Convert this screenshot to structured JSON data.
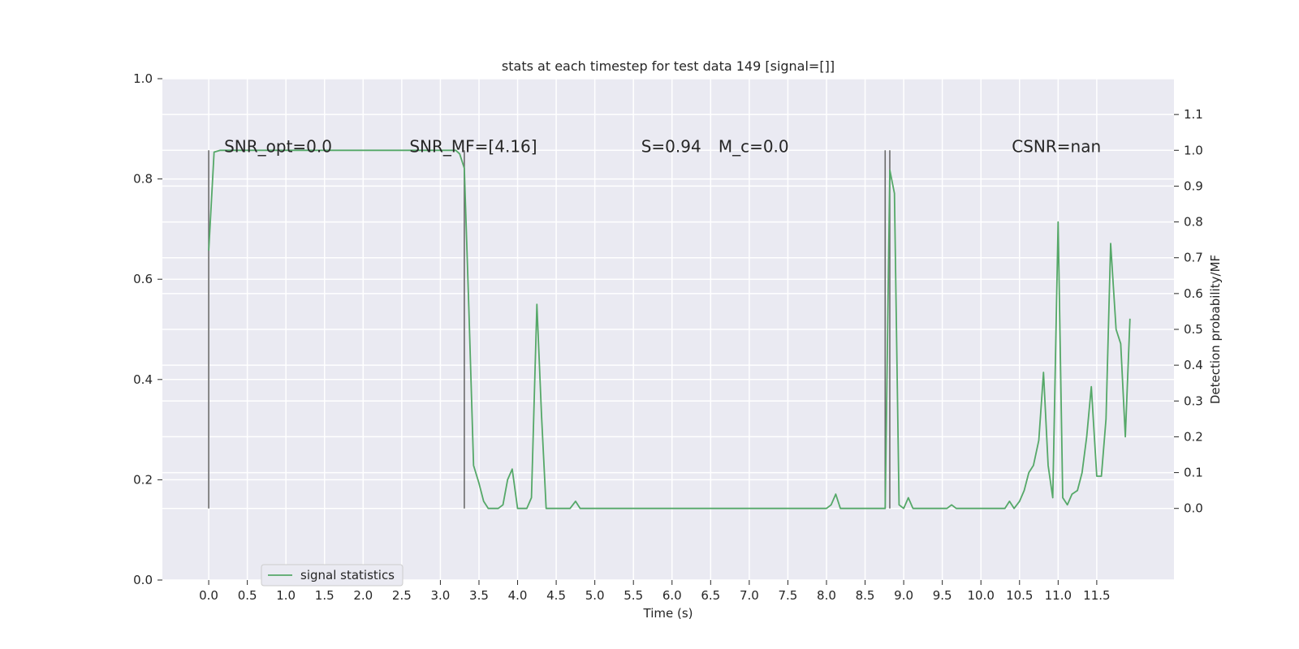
{
  "chart_data": {
    "type": "line",
    "title": "stats at each timestep for test data 149 [signal=[]]",
    "xlabel": "Time (s)",
    "ylabel": "",
    "y2label": "Detection probability/MF",
    "xlim": [
      -0.6,
      12.5
    ],
    "ylim": [
      0.0,
      1.0
    ],
    "y2lim": [
      -0.2,
      1.2
    ],
    "x_ticks": [
      "0.0",
      "0.5",
      "1.0",
      "1.5",
      "2.0",
      "2.5",
      "3.0",
      "3.5",
      "4.0",
      "4.5",
      "5.0",
      "5.5",
      "6.0",
      "6.5",
      "7.0",
      "7.5",
      "8.0",
      "8.5",
      "9.0",
      "9.5",
      "10.0",
      "10.5",
      "11.0",
      "11.5"
    ],
    "y_ticks": [
      "0.0",
      "0.2",
      "0.4",
      "0.6",
      "0.8",
      "1.0"
    ],
    "y2_ticks": [
      "0.0",
      "0.1",
      "0.2",
      "0.3",
      "0.4",
      "0.5",
      "0.6",
      "0.7",
      "0.8",
      "0.9",
      "1.0",
      "1.1"
    ],
    "grid": true,
    "legend_position": "lower-left",
    "colors": {
      "series": "#55a868",
      "vline": "#6b6b6b",
      "plot_bg": "#eaeaf2",
      "grid": "#ffffff"
    },
    "vlines": [
      {
        "x": 0.0,
        "y_from": 0.0,
        "y_to": 1.0
      },
      {
        "x": 3.31,
        "y_from": 0.0,
        "y_to": 1.0
      },
      {
        "x": 8.76,
        "y_from": 0.0,
        "y_to": 1.0
      },
      {
        "x": 8.82,
        "y_from": 0.0,
        "y_to": 1.0
      }
    ],
    "annotations": [
      {
        "id": "snr-opt",
        "text": "SNR_opt=0.0",
        "x": 0.2,
        "y": 0.995
      },
      {
        "id": "snr-mf",
        "text": "SNR_MF=[4.16]",
        "x": 2.6,
        "y": 0.995
      },
      {
        "id": "s-val",
        "text": "S=0.94",
        "x": 5.6,
        "y": 0.995
      },
      {
        "id": "mc-val",
        "text": "M_c=0.0",
        "x": 6.6,
        "y": 0.995
      },
      {
        "id": "csnr",
        "text": "CSNR=nan",
        "x": 10.4,
        "y": 0.995
      }
    ],
    "series": [
      {
        "name": "signal statistics",
        "axis": "right",
        "x": [
          0.0,
          0.07,
          0.15,
          0.3,
          0.5,
          1.0,
          1.5,
          2.0,
          2.5,
          3.0,
          3.2,
          3.25,
          3.31,
          3.37,
          3.43,
          3.5,
          3.56,
          3.62,
          3.68,
          3.75,
          3.81,
          3.87,
          3.93,
          4.0,
          4.06,
          4.12,
          4.18,
          4.25,
          4.31,
          4.37,
          4.43,
          4.5,
          4.56,
          4.62,
          4.68,
          4.75,
          4.81,
          4.87,
          4.93,
          5.0,
          5.5,
          6.0,
          6.5,
          7.0,
          7.5,
          7.9,
          8.0,
          8.06,
          8.12,
          8.18,
          8.25,
          8.5,
          8.7,
          8.76,
          8.82,
          8.88,
          8.94,
          9.0,
          9.06,
          9.12,
          9.2,
          9.5,
          9.56,
          9.62,
          9.68,
          9.75,
          10.0,
          10.06,
          10.12,
          10.18,
          10.25,
          10.31,
          10.37,
          10.43,
          10.5,
          10.56,
          10.62,
          10.68,
          10.75,
          10.81,
          10.87,
          10.93,
          11.0,
          11.06,
          11.12,
          11.18,
          11.25,
          11.31,
          11.37,
          11.43,
          11.5,
          11.56,
          11.62,
          11.68,
          11.75,
          11.81,
          11.87,
          11.93
        ],
        "values": [
          0.72,
          0.995,
          1.0,
          1.0,
          1.0,
          1.0,
          1.0,
          1.0,
          1.0,
          1.0,
          1.0,
          0.99,
          0.95,
          0.55,
          0.12,
          0.07,
          0.02,
          0.0,
          0.0,
          0.0,
          0.01,
          0.08,
          0.11,
          0.0,
          0.0,
          0.0,
          0.03,
          0.57,
          0.26,
          0.0,
          0.0,
          0.0,
          0.0,
          0.0,
          0.0,
          0.02,
          0.0,
          0.0,
          0.0,
          0.0,
          0.0,
          0.0,
          0.0,
          0.0,
          0.0,
          0.0,
          0.0,
          0.01,
          0.04,
          0.0,
          0.0,
          0.0,
          0.0,
          0.0,
          0.945,
          0.88,
          0.01,
          0.0,
          0.03,
          0.0,
          0.0,
          0.0,
          0.0,
          0.01,
          0.0,
          0.0,
          0.0,
          0.0,
          0.0,
          0.0,
          0.0,
          0.0,
          0.02,
          0.0,
          0.02,
          0.05,
          0.1,
          0.12,
          0.19,
          0.38,
          0.12,
          0.03,
          0.8,
          0.03,
          0.01,
          0.04,
          0.05,
          0.1,
          0.2,
          0.34,
          0.09,
          0.09,
          0.25,
          0.74,
          0.5,
          0.46,
          0.2,
          0.53
        ]
      }
    ]
  }
}
